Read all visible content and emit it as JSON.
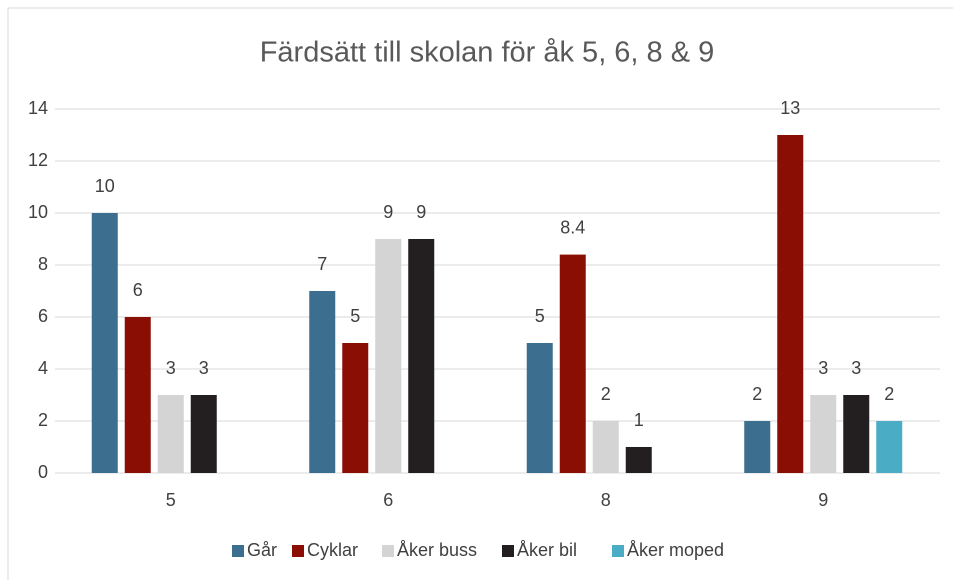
{
  "chart_data": {
    "type": "bar",
    "title": "Färdsätt till skolan för åk 5, 6, 8 & 9",
    "categories": [
      "5",
      "6",
      "8",
      "9"
    ],
    "series": [
      {
        "name": "Går",
        "color": "#3b6e8f",
        "values": [
          10,
          7,
          5,
          2
        ]
      },
      {
        "name": "Cyklar",
        "color": "#8b0e04",
        "values": [
          6,
          5,
          8.4,
          13
        ]
      },
      {
        "name": "Åker buss",
        "color": "#d4d4d4",
        "values": [
          3,
          9,
          2,
          3
        ]
      },
      {
        "name": "Åker bil",
        "color": "#231f20",
        "values": [
          3,
          9,
          1,
          3
        ]
      },
      {
        "name": "Åker moped",
        "color": "#4bacc6",
        "values": [
          null,
          null,
          null,
          2
        ]
      }
    ],
    "ylim": [
      0,
      14
    ],
    "yticks": [
      0,
      2,
      4,
      6,
      8,
      10,
      12,
      14
    ],
    "grid": true,
    "legend": "bottom"
  }
}
